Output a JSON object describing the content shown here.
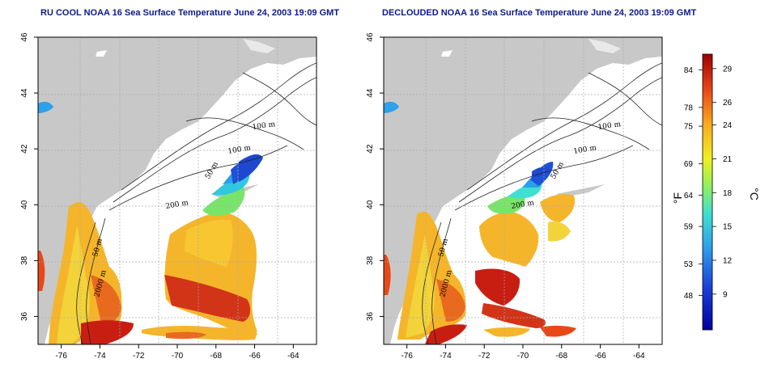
{
  "titles": {
    "left": "RU COOL NOAA 16 Sea Surface Temperature June 24, 2003 19:09 GMT",
    "right": "DECLOUDED NOAA 16 Sea Surface Temperature June 24, 2003 19:09 GMT"
  },
  "axes": {
    "x_ticks": [
      -76,
      -74,
      -72,
      -70,
      -68,
      -66,
      -64
    ],
    "y_ticks": [
      36,
      38,
      40,
      42,
      44,
      46
    ],
    "xlim": [
      -77.2,
      -62.8
    ],
    "ylim": [
      35,
      46
    ]
  },
  "contour_labels": [
    "100 m",
    "100 m",
    "50 m",
    "200 m",
    "50 m",
    "2000 m"
  ],
  "colorbar": {
    "fahrenheit_ticks": [
      84,
      78,
      75,
      69,
      64,
      59,
      53,
      48
    ],
    "celsius_ticks": [
      29,
      26,
      24,
      21,
      18,
      15,
      12,
      9
    ],
    "unit_f": "°F",
    "unit_c": "°C"
  },
  "colors": {
    "land": "#c8c8c8",
    "grid": "#aaaaaa",
    "title": "#0b1a8a"
  }
}
